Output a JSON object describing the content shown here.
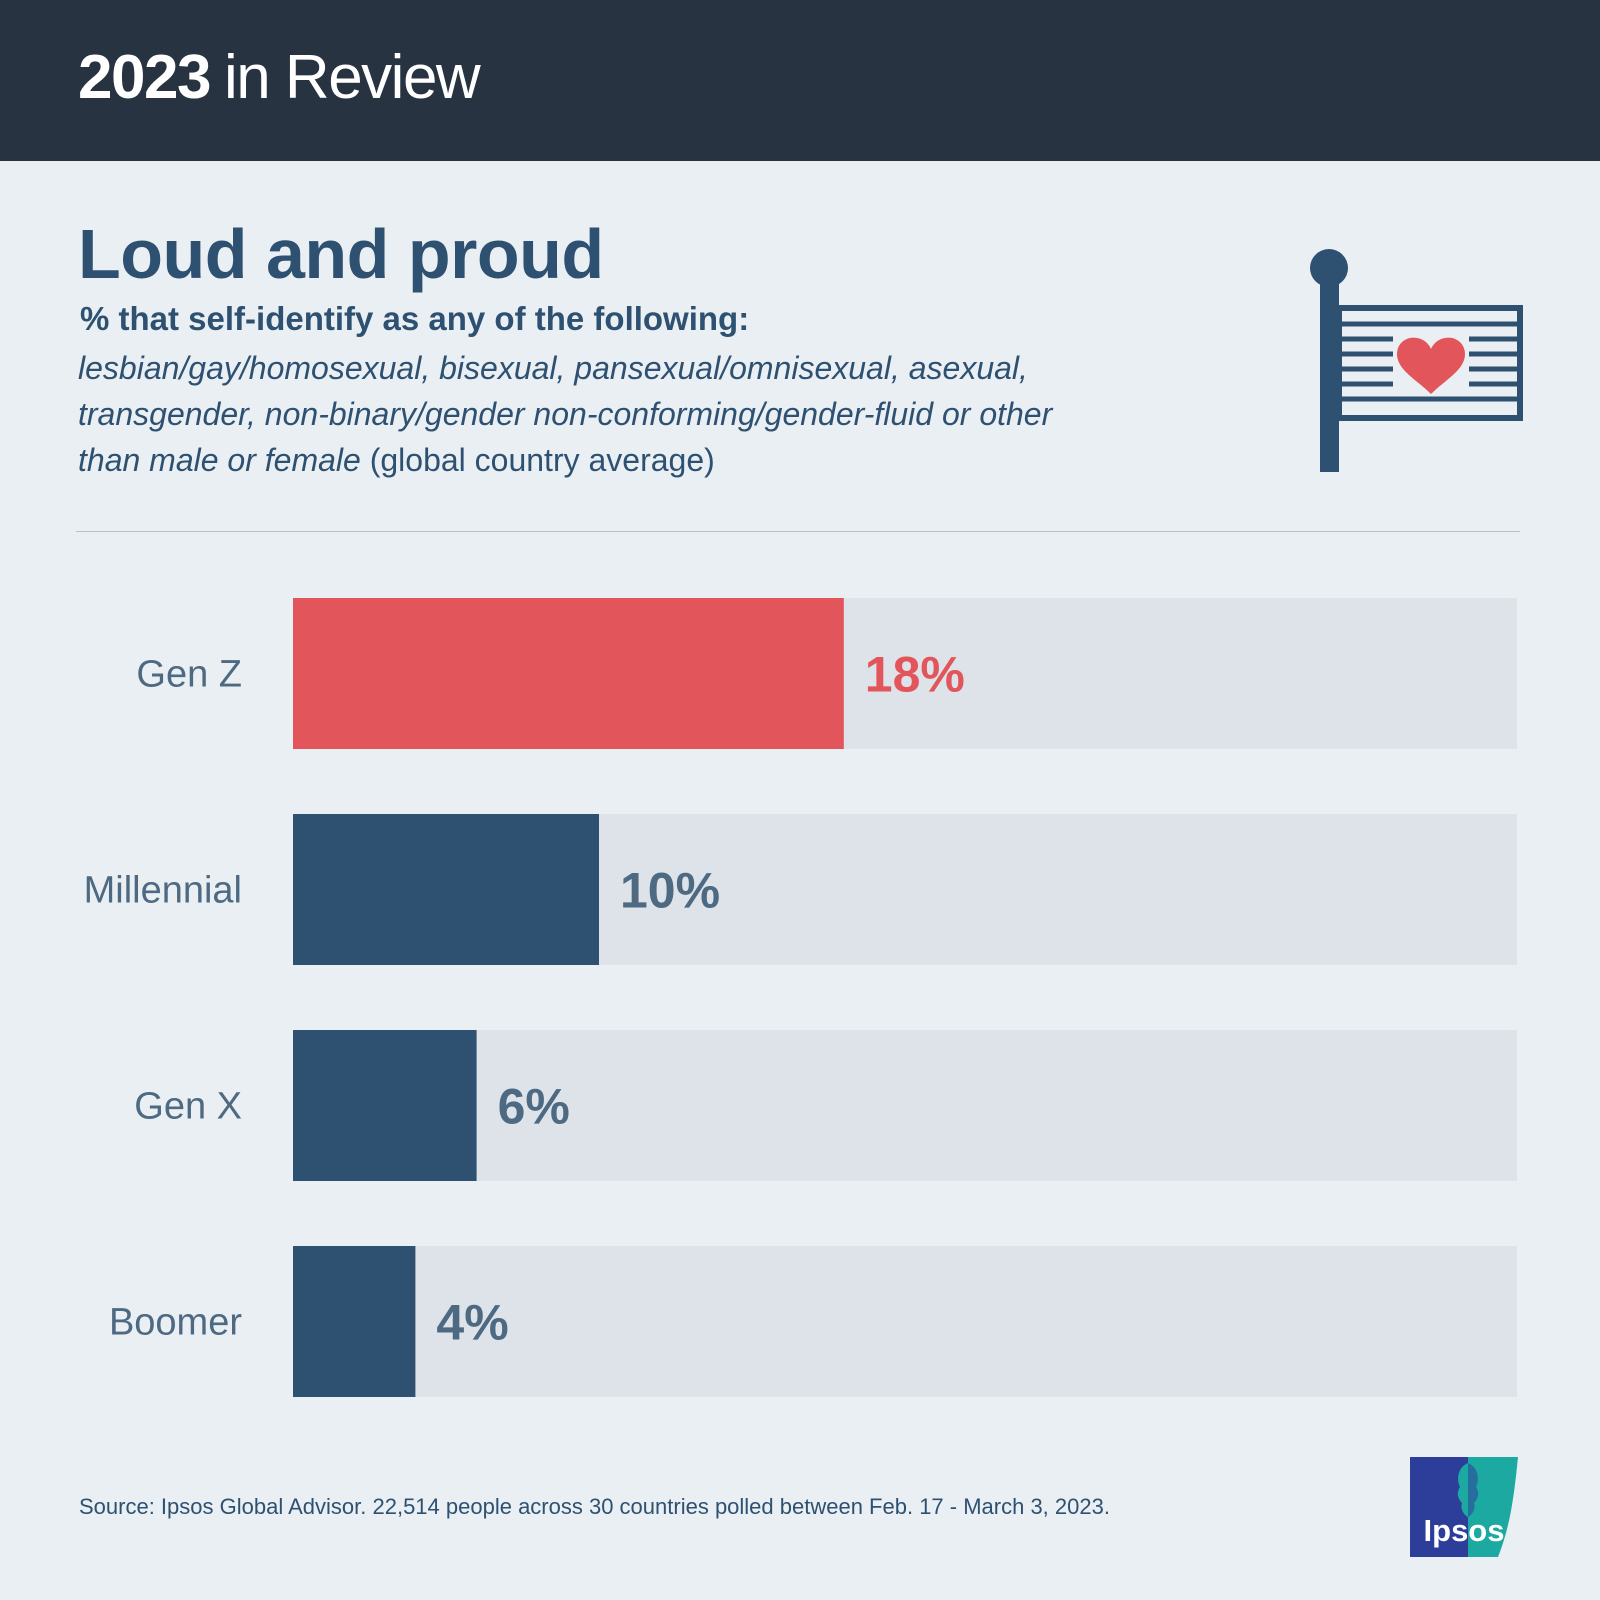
{
  "header": {
    "year": "2023",
    "rest": "in Review"
  },
  "title": "Loud and proud",
  "subtitle": "% that self-identify as any of the following:",
  "description": {
    "line1_italic": "lesbian/gay/homosexual, bisexual, pansexual/omnisexual, asexual,",
    "line2_italic": "transgender, non-binary/gender non-conforming/gender-fluid or other",
    "line3_italic": "than male or female",
    "line3_normal": " (global country average)"
  },
  "icon": "pride-flag-heart-icon",
  "colors": {
    "highlight": "#e2555a",
    "bar": "#2e5172",
    "track": "#dde3e9",
    "label": "#4e6a83"
  },
  "chart_data": {
    "type": "bar",
    "orientation": "horizontal",
    "categories": [
      "Gen Z",
      "Millennial",
      "Gen X",
      "Boomer"
    ],
    "values": [
      18,
      10,
      6,
      4
    ],
    "value_labels": [
      "18%",
      "10%",
      "6%",
      "4%"
    ],
    "highlight_index": 0,
    "xlim": [
      0,
      40
    ],
    "unit": "%"
  },
  "source": "Source: Ipsos Global Advisor. 22,514 people across 30 countries polled between Feb. 17 - March 3, 2023.",
  "logo": {
    "text": "Ipsos"
  }
}
